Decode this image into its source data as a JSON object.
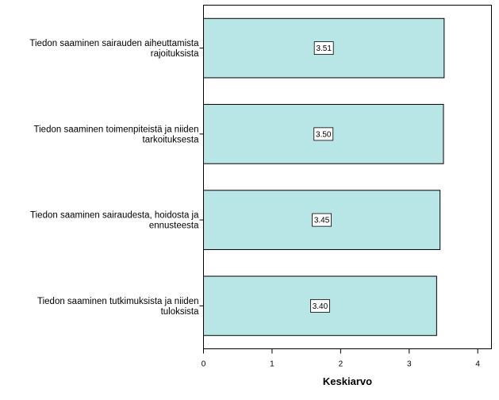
{
  "chart_data": {
    "type": "bar",
    "orientation": "horizontal",
    "categories": [
      [
        "Tiedon saaminen sairauden aiheuttamista",
        "rajoituksista"
      ],
      [
        "Tiedon saaminen toimenpiteistä ja niiden",
        "tarkoituksesta"
      ],
      [
        "Tiedon saaminen sairaudesta, hoidosta ja",
        "ennusteesta"
      ],
      [
        "Tiedon saaminen tutkimuksista ja niiden",
        "tuloksista"
      ]
    ],
    "values": [
      3.51,
      3.5,
      3.45,
      3.4
    ],
    "data_labels": [
      "3.51",
      "3.50",
      "3.45",
      "3.40"
    ],
    "xlabel": "Keskiarvo",
    "xlim": [
      0,
      4.2
    ],
    "xticks": [
      0,
      1,
      2,
      3,
      4
    ],
    "xtick_labels": [
      "0",
      "1",
      "2",
      "3",
      "4"
    ],
    "bar_color": "#b8e6e6",
    "bar_edge_color": "#000000",
    "grid": false
  }
}
